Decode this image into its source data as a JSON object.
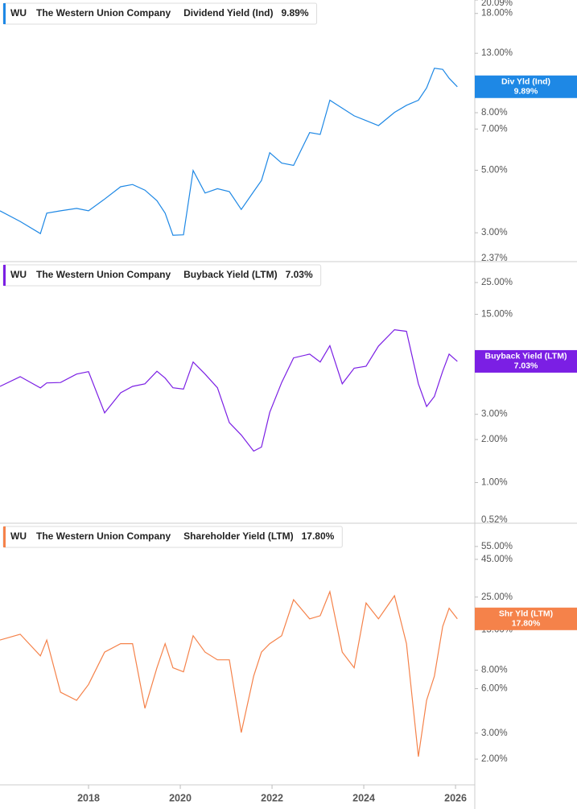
{
  "chart_data": [
    {
      "type": "line",
      "ticker": "WU",
      "company": "The Western Union Company",
      "log_scale": true,
      "x": [
        2016.07,
        2016.51,
        2016.95,
        2017.09,
        2017.39,
        2017.74,
        2018.0,
        2018.35,
        2018.7,
        2018.96,
        2019.23,
        2019.49,
        2019.67,
        2019.84,
        2020.07,
        2020.28,
        2020.54,
        2020.81,
        2021.07,
        2021.33,
        2021.6,
        2021.77,
        2021.95,
        2022.21,
        2022.47,
        2022.82,
        2023.05,
        2023.26,
        2023.53,
        2023.79,
        2024.05,
        2024.32,
        2024.67,
        2024.93,
        2025.19,
        2025.37,
        2025.54,
        2025.72,
        2025.86,
        2026.04
      ],
      "xlim": [
        2016.07,
        2026.42
      ],
      "ylim": [
        2.37,
        20.09
      ],
      "yticks": [
        {
          "value": 20.09,
          "label": "20.09%"
        },
        {
          "value": 18,
          "label": "18.00%"
        },
        {
          "value": 13,
          "label": "13.00%"
        },
        {
          "value": 8,
          "label": "8.00%"
        },
        {
          "value": 7,
          "label": "7.00%"
        },
        {
          "value": 5,
          "label": "5.00%"
        },
        {
          "value": 3,
          "label": "3.00%"
        },
        {
          "value": 2.37,
          "label": "2.37%"
        }
      ],
      "series": [
        {
          "name": "Dividend Yield (Ind)",
          "short_name": "Div Yld (Ind)",
          "color": "#1e88e5",
          "values": [
            3.59,
            3.29,
            2.98,
            3.52,
            3.59,
            3.66,
            3.59,
            3.95,
            4.37,
            4.45,
            4.25,
            3.9,
            3.52,
            2.94,
            2.95,
            4.99,
            4.15,
            4.3,
            4.2,
            3.63,
            4.2,
            4.6,
            5.77,
            5.3,
            5.2,
            6.8,
            6.7,
            8.86,
            8.3,
            7.8,
            7.5,
            7.2,
            8.02,
            8.5,
            8.86,
            9.8,
            11.5,
            11.4,
            10.6,
            9.89
          ],
          "current": {
            "value": 9.89,
            "label": "9.89%"
          }
        }
      ]
    },
    {
      "type": "line",
      "ticker": "WU",
      "company": "The Western Union Company",
      "log_scale": true,
      "x": [
        2016.07,
        2016.51,
        2016.95,
        2017.09,
        2017.39,
        2017.74,
        2018.0,
        2018.35,
        2018.7,
        2018.96,
        2019.23,
        2019.49,
        2019.67,
        2019.84,
        2020.07,
        2020.28,
        2020.54,
        2020.81,
        2021.07,
        2021.33,
        2021.6,
        2021.77,
        2021.95,
        2022.21,
        2022.47,
        2022.82,
        2023.05,
        2023.26,
        2023.53,
        2023.79,
        2024.05,
        2024.32,
        2024.67,
        2024.93,
        2025.19,
        2025.37,
        2025.54,
        2025.72,
        2025.86,
        2026.04
      ],
      "xlim": [
        2016.07,
        2026.42
      ],
      "ylim": [
        0.52,
        35
      ],
      "yticks": [
        {
          "value": 25,
          "label": "25.00%"
        },
        {
          "value": 15,
          "label": "15.00%"
        },
        {
          "value": 3,
          "label": "3.00%"
        },
        {
          "value": 2,
          "label": "2.00%"
        },
        {
          "value": 1,
          "label": "1.00%"
        },
        {
          "value": 0.52,
          "label": "0.52%"
        }
      ],
      "series": [
        {
          "name": "Buyback Yield (LTM)",
          "short_name": "Buyback Yield (LTM)",
          "color": "#7b1fe4",
          "values": [
            4.7,
            5.5,
            4.59,
            4.97,
            5.0,
            5.73,
            5.96,
            3.07,
            4.24,
            4.7,
            4.9,
            6.0,
            5.37,
            4.6,
            4.5,
            6.96,
            5.73,
            4.6,
            2.62,
            2.15,
            1.66,
            1.77,
            3.1,
            5.0,
            7.44,
            7.9,
            6.96,
            9.04,
            4.9,
            6.3,
            6.5,
            9.0,
            11.7,
            11.4,
            4.9,
            3.4,
            4.0,
            6.0,
            7.9,
            7.03
          ],
          "current": {
            "value": 7.03,
            "label": "7.03%"
          }
        }
      ]
    },
    {
      "type": "line",
      "ticker": "WU",
      "company": "The Western Union Company",
      "log_scale": true,
      "x": [
        2016.07,
        2016.51,
        2016.95,
        2017.09,
        2017.39,
        2017.74,
        2018.0,
        2018.35,
        2018.7,
        2018.96,
        2019.23,
        2019.49,
        2019.67,
        2019.84,
        2020.07,
        2020.28,
        2020.54,
        2020.81,
        2021.07,
        2021.33,
        2021.6,
        2021.77,
        2021.95,
        2022.21,
        2022.47,
        2022.82,
        2023.05,
        2023.26,
        2023.53,
        2023.79,
        2024.05,
        2024.32,
        2024.67,
        2024.93,
        2025.19,
        2025.37,
        2025.54,
        2025.72,
        2025.86,
        2026.04
      ],
      "xlim": [
        2016.07,
        2026.42
      ],
      "xticks": [
        2018,
        2020,
        2022,
        2024,
        2026
      ],
      "ylim": [
        1.34,
        79
      ],
      "yticks": [
        {
          "value": 55,
          "label": "55.00%"
        },
        {
          "value": 45,
          "label": "45.00%"
        },
        {
          "value": 25,
          "label": "25.00%"
        },
        {
          "value": 15,
          "label": "15.00%"
        },
        {
          "value": 8,
          "label": "8.00%"
        },
        {
          "value": 6,
          "label": "6.00%"
        },
        {
          "value": 3,
          "label": "3.00%"
        },
        {
          "value": 2,
          "label": "2.00%"
        }
      ],
      "series": [
        {
          "name": "Shareholder Yield (LTM)",
          "short_name": "Shr Yld (LTM)",
          "color": "#f5824a",
          "values": [
            12.8,
            14.0,
            10.0,
            12.8,
            5.68,
            5.0,
            6.4,
            10.6,
            12.1,
            12.1,
            4.42,
            8.3,
            12.1,
            8.3,
            7.8,
            13.7,
            10.6,
            9.4,
            9.4,
            3.03,
            7.3,
            10.6,
            12.1,
            13.7,
            24.0,
            17.8,
            18.7,
            27.2,
            10.6,
            8.3,
            22.8,
            17.8,
            25.5,
            12.1,
            2.08,
            5.0,
            7.3,
            15.8,
            21.0,
            17.8
          ],
          "current": {
            "value": 17.8,
            "label": "17.80%"
          }
        }
      ]
    }
  ]
}
